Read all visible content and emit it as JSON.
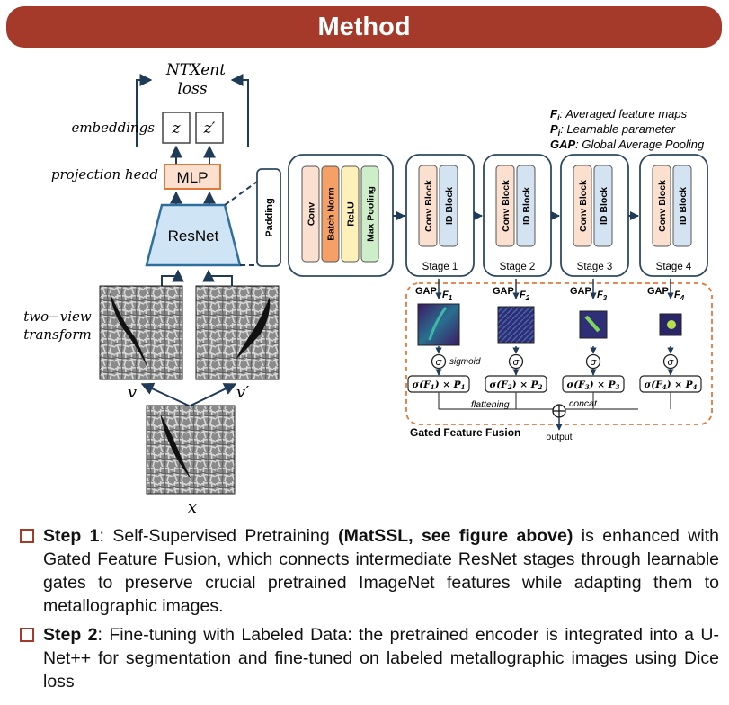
{
  "banner": {
    "title": "Method"
  },
  "legend": [
    {
      "sym": "F",
      "sub": "i",
      "text": ": Averaged feature maps"
    },
    {
      "sym": "P",
      "sub": "i",
      "text": ": Learnable parameter"
    },
    {
      "sym": "GAP",
      "sub": "",
      "text": ": Global Average Pooling"
    }
  ],
  "ssl": {
    "loss_line1": "NTXent",
    "loss_line2": "loss",
    "embeddings_label": "embeddings",
    "z": "z",
    "z_prime": "z′",
    "projection_label": "projection head",
    "mlp": "MLP",
    "resnet": "ResNet",
    "two_view_line1": "two−view",
    "two_view_line2": "transform",
    "v": "v",
    "v_prime": "v′",
    "x": "x"
  },
  "encoder": {
    "padding": "Padding",
    "stem_layers": [
      "Conv",
      "Batch Norm",
      "ReLU",
      "Max Pooling"
    ],
    "stem_colors": [
      "#fbe0cf",
      "#f4a066",
      "#fdf0b8",
      "#cdeec8"
    ],
    "block_labels": [
      "Conv Block",
      "ID Block"
    ],
    "block_colors": [
      "#fbe0cf",
      "#d3e3f2"
    ],
    "stages": [
      "Stage 1",
      "Stage 2",
      "Stage 3",
      "Stage 4"
    ]
  },
  "gated": {
    "gap": "GAP",
    "features": [
      {
        "F": "F",
        "sub": "1",
        "formula_sig": "σ(F",
        "formula_p": ") × P",
        "idx": "1"
      },
      {
        "F": "F",
        "sub": "2",
        "formula_sig": "σ(F",
        "formula_p": ") × P",
        "idx": "2"
      },
      {
        "F": "F",
        "sub": "3",
        "formula_sig": "σ(F",
        "formula_p": ") × P",
        "idx": "3"
      },
      {
        "F": "F",
        "sub": "4",
        "formula_sig": "σ(F",
        "formula_p": ") × P",
        "idx": "4"
      }
    ],
    "sigma": "σ",
    "sigmoid": "sigmoid",
    "flattening": "flattening",
    "concat": "concat.",
    "output": "output",
    "title": "Gated Feature Fusion"
  },
  "steps": [
    {
      "head": "Step 1",
      "pre": ": Self-Supervised Pretraining ",
      "bold": "(MatSSL, see figure above)",
      "post": " is enhanced with Gated Feature Fusion, which connects intermediate ResNet stages through learnable gates to preserve crucial pretrained ImageNet features while adapting them to metallographic images."
    },
    {
      "head": "Step 2",
      "pre": ":  Fine-tuning with Labeled Data: the pretrained encoder is integrated into a U-Net++ for segmentation and fine-tuned on labeled metallographic images using Dice loss",
      "bold": "",
      "post": ""
    }
  ],
  "colors": {
    "banner": "#a63a2a",
    "mlp_fill": "#fbe0cf",
    "mlp_stroke": "#e07a3a",
    "resnet_fill": "#cfe4f4",
    "resnet_stroke": "#2e6f9e",
    "dashed_border": "#e07a3a",
    "arrow": "#1f3b57"
  }
}
